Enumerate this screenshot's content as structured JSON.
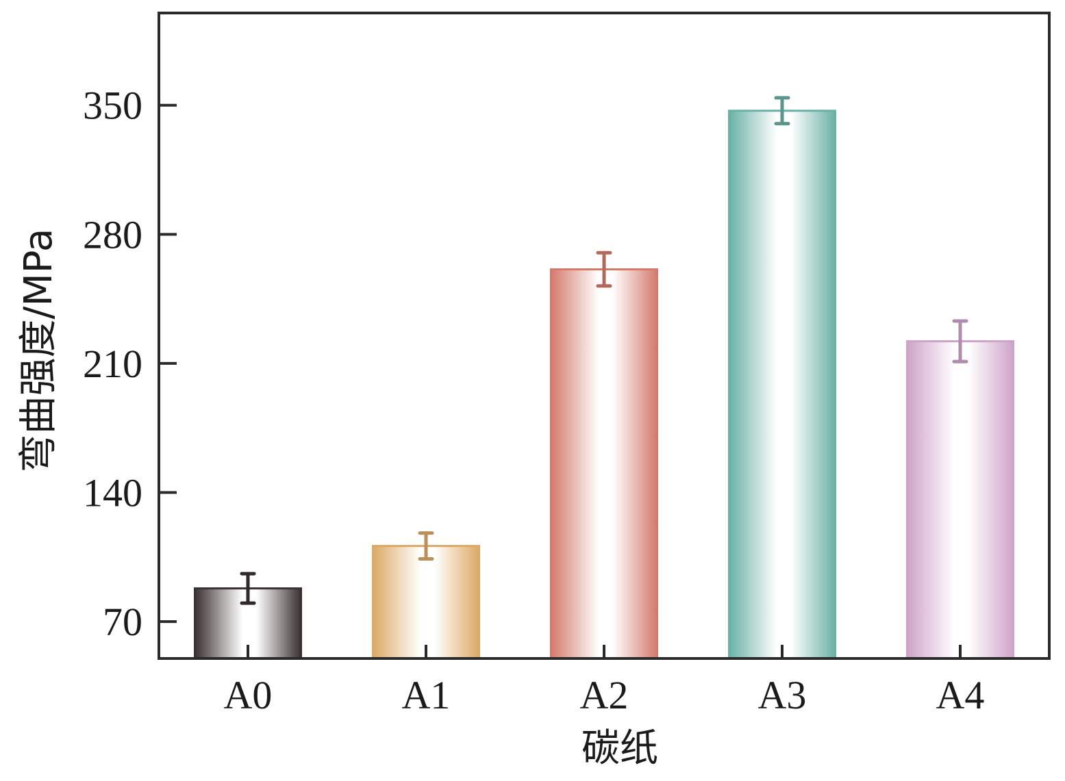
{
  "chart_data": {
    "type": "bar",
    "xlabel": "碳纸",
    "ylabel": "弯曲强度/MPa",
    "categories": [
      "A0",
      "A1",
      "A2",
      "A3",
      "A4"
    ],
    "values": [
      88,
      111,
      261,
      347,
      222
    ],
    "errors": [
      8,
      7,
      9,
      7,
      11
    ],
    "ylim": [
      50,
      400
    ],
    "yticks": [
      70,
      140,
      210,
      280,
      350
    ],
    "yticks_labels": [
      "70",
      "140",
      "210",
      "280",
      "350"
    ],
    "grid": false,
    "legend": "none",
    "colors": [
      "#3a3030",
      "#dca865",
      "#d47a6c",
      "#6ab1a5",
      "#cfa3c9"
    ]
  }
}
